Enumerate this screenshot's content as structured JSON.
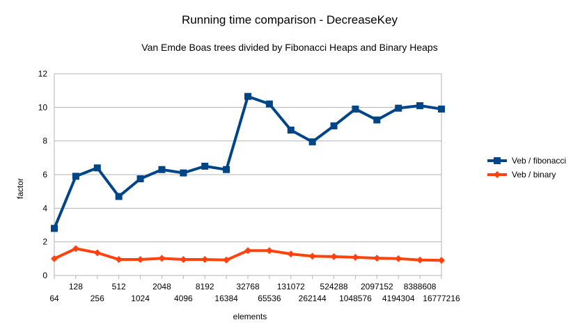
{
  "chart_data": {
    "type": "line",
    "title": "Running time comparison - DecreaseKey",
    "subtitle": "Van Emde Boas trees divided by Fibonacci Heaps and Binary Heaps",
    "xlabel": "elements",
    "ylabel": "factor",
    "ylim": [
      0,
      12
    ],
    "yticks": [
      "0",
      "2",
      "4",
      "6",
      "8",
      "10",
      "12"
    ],
    "grid": true,
    "legend_position": "right",
    "categories": [
      "64",
      "128",
      "256",
      "512",
      "1024",
      "2048",
      "4096",
      "8192",
      "16384",
      "32768",
      "65536",
      "131072",
      "262144",
      "524288",
      "1048576",
      "2097152",
      "4194304",
      "8388608",
      "16777216"
    ],
    "series": [
      {
        "name": "Veb / fibonacci",
        "color": "#004586",
        "marker": "square",
        "values": [
          2.8,
          5.9,
          6.4,
          4.7,
          5.75,
          6.3,
          6.1,
          6.5,
          6.3,
          10.65,
          10.2,
          8.65,
          7.95,
          8.9,
          9.9,
          9.25,
          9.95,
          10.1,
          9.9
        ]
      },
      {
        "name": "Veb / binary",
        "color": "#ff420e",
        "marker": "diamond",
        "values": [
          1.0,
          1.6,
          1.35,
          0.95,
          0.95,
          1.02,
          0.95,
          0.95,
          0.92,
          1.48,
          1.48,
          1.28,
          1.15,
          1.12,
          1.08,
          1.03,
          1.0,
          0.92,
          0.9
        ]
      }
    ]
  }
}
